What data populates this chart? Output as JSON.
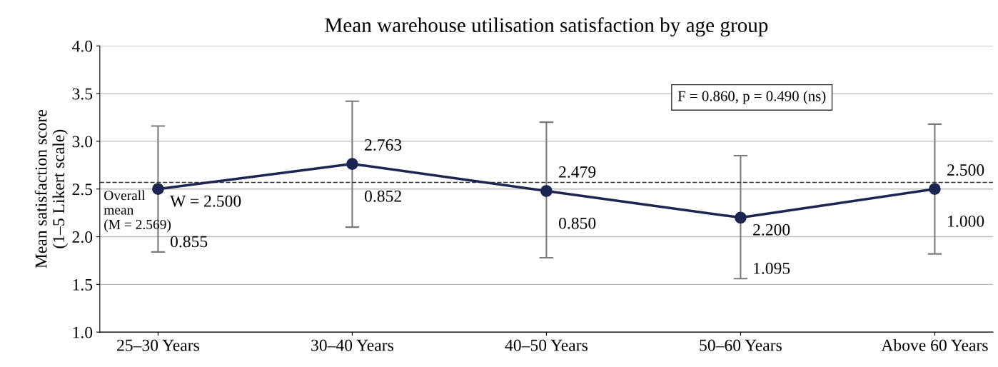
{
  "chart_data": {
    "type": "line",
    "title": "Mean warehouse utilisation satisfaction by age group",
    "ylabel": "Mean satisfaction score\n(1–5 Likert scale)",
    "categories": [
      "25–30 Years",
      "30–40 Years",
      "40–50 Years",
      "50–60 Years",
      "Above 60 Years"
    ],
    "series": [
      {
        "color": "#1c2551",
        "values": [
          2.5,
          2.763,
          2.479,
          2.2,
          2.5
        ],
        "value_labels": [
          "W = 2.500",
          "2.763",
          "2.479",
          "2.200",
          "2.500"
        ],
        "errors": [
          [
            1.84,
            3.16
          ],
          [
            2.1,
            3.42
          ],
          [
            1.78,
            3.2
          ],
          [
            1.56,
            2.85
          ],
          [
            1.82,
            3.18
          ]
        ]
      }
    ],
    "ylim": [
      1.0,
      4.0
    ],
    "yticks": [
      {
        "value": 1.0,
        "label": "1.0"
      },
      {
        "value": 1.5,
        "label": "1.5"
      },
      {
        "value": 2.0,
        "label": "2.0"
      },
      {
        "value": 2.5,
        "label": "2.5"
      },
      {
        "value": 3.0,
        "label": "3.0"
      },
      {
        "value": 3.5,
        "label": "3.5"
      },
      {
        "value": 4.0,
        "label": "4.0"
      }
    ],
    "grid": "y",
    "marker": "circle",
    "line_style": "solid",
    "ref_lines": [
      {
        "axis": "y",
        "value": 2.569,
        "label": "Overall\nmean\n(M = 2.569)",
        "line_style": "dashed",
        "color": "#333333"
      }
    ],
    "annotations": [
      {
        "text": "0.855",
        "x": "25–30 Years",
        "y": 1.84
      },
      {
        "text": "0.852",
        "x": "30–40 Years",
        "y": 2.763
      },
      {
        "text": "0.850",
        "x": "40–50 Years",
        "y": 2.479
      },
      {
        "text": "1.095",
        "x": "50–60 Years",
        "y": 1.56
      },
      {
        "text": "1.000",
        "x": "Above 60 Years",
        "y": 2.5
      },
      "F = 0.860, p = 0.490 (ns)"
    ]
  }
}
